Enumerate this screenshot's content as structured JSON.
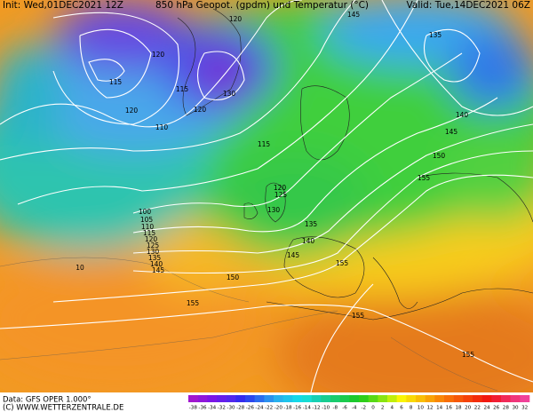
{
  "header": {
    "init": "Init: Wed,01DEC2021 12Z",
    "title": "850 hPa Geopot. (gpdm) und Temperatur (°C)",
    "valid": "Valid: Tue,14DEC2021 06Z"
  },
  "footer": {
    "source": "Data: GFS OPER 1.000°",
    "copyright": "(C) WWW.WETTERZENTRALE.DE"
  },
  "colorbar": {
    "labels": [
      -38,
      -36,
      -34,
      -32,
      -30,
      -28,
      -26,
      -24,
      -22,
      -20,
      -18,
      -16,
      -14,
      -12,
      -10,
      -8,
      -6,
      -4,
      -2,
      0,
      2,
      4,
      6,
      8,
      10,
      12,
      14,
      16,
      18,
      20,
      22,
      24,
      26,
      28,
      30,
      32
    ]
  },
  "contour_labels": [
    "120",
    "145",
    "135",
    "120",
    "115",
    "115",
    "130",
    "120",
    "120",
    "110",
    "115",
    "140",
    "145",
    "150",
    "155",
    "120",
    "125",
    "130",
    "135",
    "140",
    "145",
    "100",
    "105",
    "110",
    "115",
    "120",
    "125",
    "130",
    "135",
    "140",
    "145",
    "150",
    "155",
    "155",
    "155",
    "155",
    "10"
  ]
}
